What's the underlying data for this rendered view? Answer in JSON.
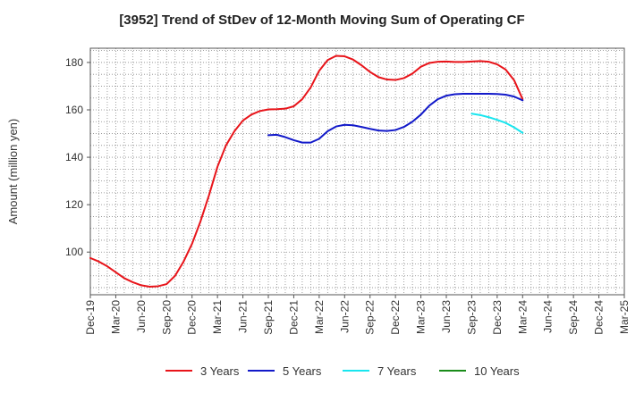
{
  "chart_data": {
    "type": "line",
    "title": "[3952]  Trend of StDev of 12-Month Moving Sum of Operating CF",
    "xlabel": "",
    "ylabel": "Amount (million yen)",
    "ylim": [
      82,
      186
    ],
    "yticks": [
      100,
      120,
      140,
      160,
      180
    ],
    "x_tick_labels": [
      "Dec-19",
      "Mar-20",
      "Jun-20",
      "Sep-20",
      "Dec-20",
      "Mar-21",
      "Jun-21",
      "Sep-21",
      "Dec-21",
      "Mar-22",
      "Jun-22",
      "Sep-22",
      "Dec-22",
      "Mar-23",
      "Jun-23",
      "Sep-23",
      "Dec-23",
      "Mar-24",
      "Jun-24",
      "Sep-24",
      "Dec-24",
      "Mar-25"
    ],
    "grid": true,
    "legend_position": "bottom",
    "series": [
      {
        "name": "3 Years",
        "color": "#e8141a",
        "x": [
          "2019-12",
          "2020-01",
          "2020-02",
          "2020-03",
          "2020-04",
          "2020-05",
          "2020-06",
          "2020-07",
          "2020-08",
          "2020-09",
          "2020-10",
          "2020-11",
          "2020-12",
          "2021-01",
          "2021-02",
          "2021-03",
          "2021-04",
          "2021-05",
          "2021-06",
          "2021-07",
          "2021-08",
          "2021-09",
          "2021-10",
          "2021-11",
          "2021-12",
          "2022-01",
          "2022-02",
          "2022-03",
          "2022-04",
          "2022-05",
          "2022-06",
          "2022-07",
          "2022-08",
          "2022-09",
          "2022-10",
          "2022-11",
          "2022-12",
          "2023-01",
          "2023-02",
          "2023-03",
          "2023-04",
          "2023-05",
          "2023-06",
          "2023-07",
          "2023-08",
          "2023-09",
          "2023-10",
          "2023-11",
          "2023-12",
          "2024-01",
          "2024-02",
          "2024-03"
        ],
        "values": [
          97.5,
          96,
          94,
          91.5,
          89,
          87.3,
          86,
          85.4,
          85.6,
          86.5,
          90,
          96,
          103.5,
          113,
          124,
          136,
          145,
          151,
          155.5,
          158,
          159.5,
          160.2,
          160.3,
          160.5,
          161.5,
          164.5,
          169.5,
          176.5,
          181,
          182.8,
          182.6,
          181.2,
          178.8,
          176,
          173.8,
          172.8,
          172.6,
          173.4,
          175.3,
          178.2,
          179.8,
          180.3,
          180.4,
          180.2,
          180.2,
          180.4,
          180.6,
          180.3,
          179.2,
          177,
          172.5,
          164.5
        ]
      },
      {
        "name": "5 Years",
        "color": "#1219c9",
        "x": [
          "2021-09",
          "2021-10",
          "2021-11",
          "2021-12",
          "2022-01",
          "2022-02",
          "2022-03",
          "2022-04",
          "2022-05",
          "2022-06",
          "2022-07",
          "2022-08",
          "2022-09",
          "2022-10",
          "2022-11",
          "2022-12",
          "2023-01",
          "2023-02",
          "2023-03",
          "2023-04",
          "2023-05",
          "2023-06",
          "2023-07",
          "2023-08",
          "2023-09",
          "2023-10",
          "2023-11",
          "2023-12",
          "2024-01",
          "2024-02",
          "2024-03"
        ],
        "values": [
          149.3,
          149.5,
          148.5,
          147.2,
          146.2,
          146.2,
          147.8,
          151,
          153,
          153.7,
          153.5,
          152.8,
          152,
          151.3,
          151.1,
          151.5,
          152.8,
          155,
          158,
          161.8,
          164.5,
          166,
          166.6,
          166.8,
          166.8,
          166.8,
          166.8,
          166.7,
          166.4,
          165.6,
          164
        ]
      },
      {
        "name": "7 Years",
        "color": "#19e6ef",
        "x": [
          "2023-09",
          "2023-10",
          "2023-11",
          "2023-12",
          "2024-01",
          "2024-02",
          "2024-03"
        ],
        "values": [
          158.4,
          157.8,
          156.9,
          155.8,
          154.5,
          152.6,
          150.3
        ]
      },
      {
        "name": "10 Years",
        "color": "#1a8c1a",
        "x": [],
        "values": []
      }
    ]
  }
}
